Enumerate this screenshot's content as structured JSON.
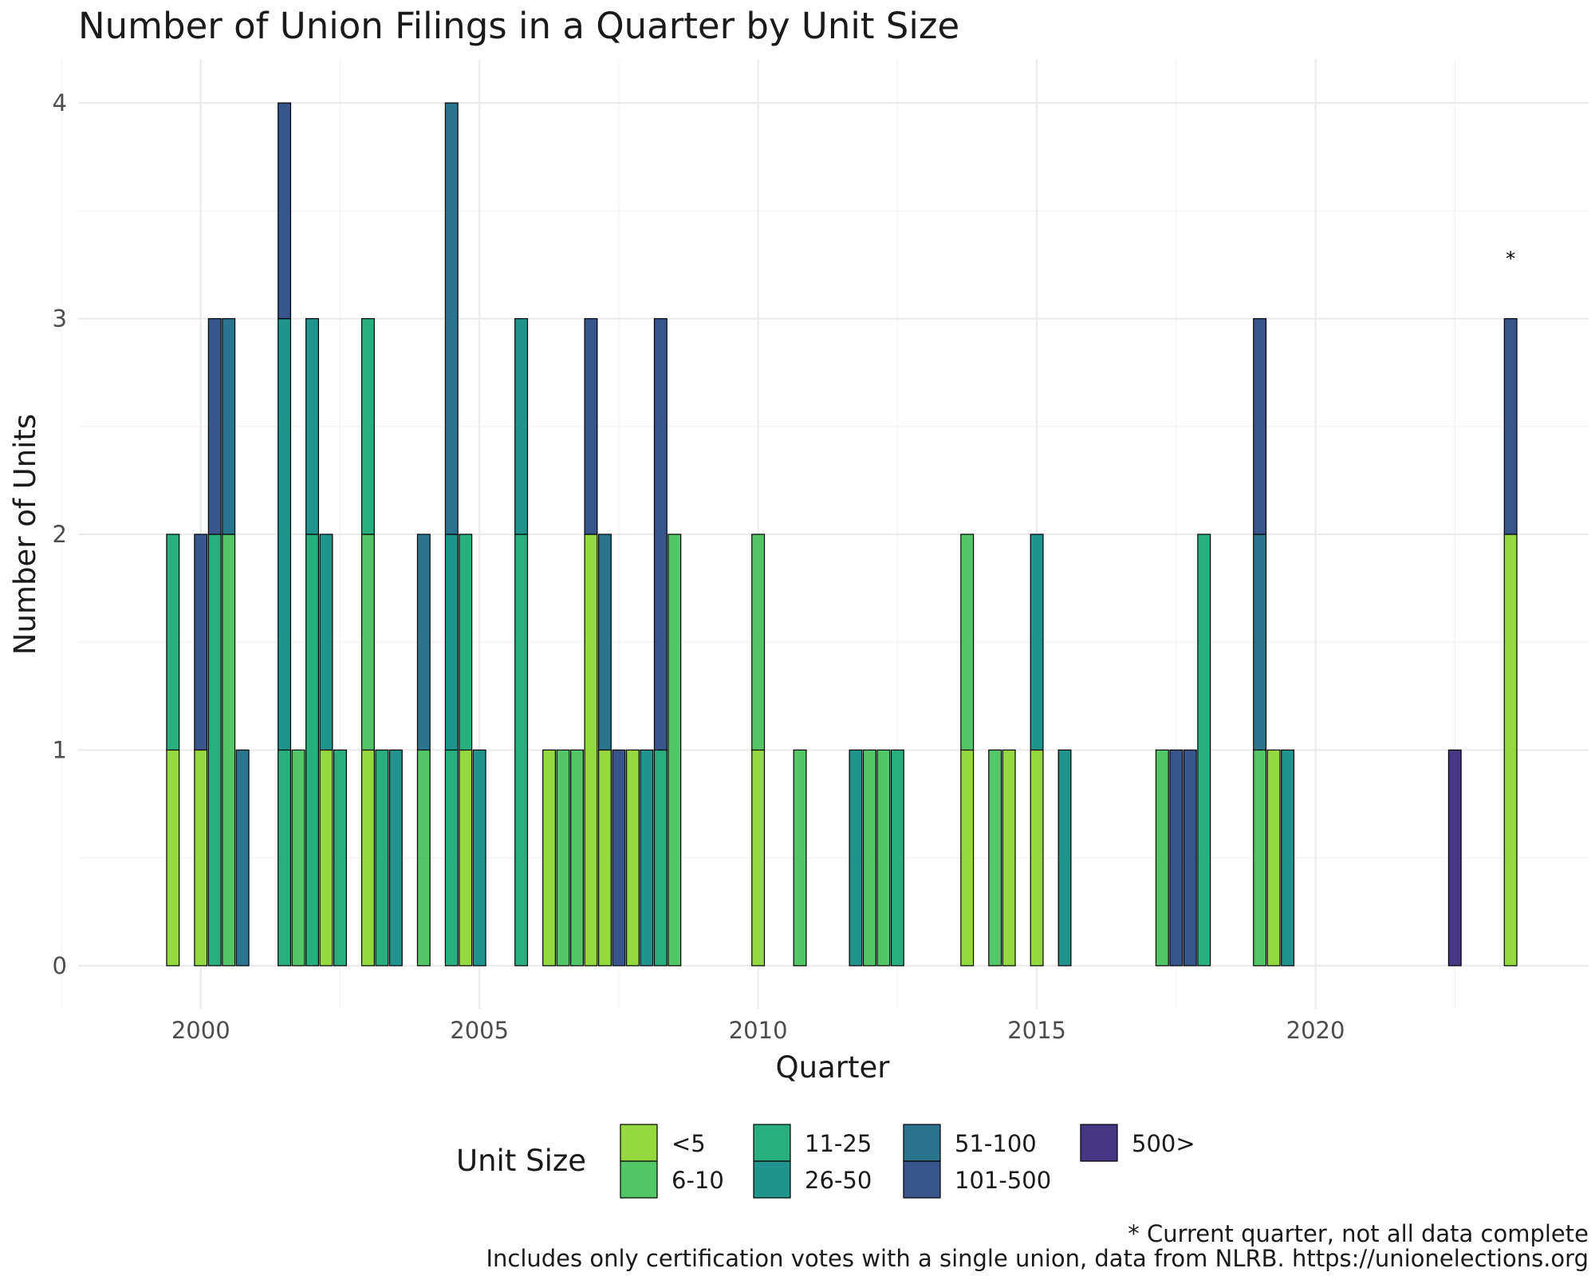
{
  "chart_data": {
    "type": "bar",
    "stacked": true,
    "title": "Number of Union Filings in a Quarter by Unit Size",
    "xlabel": "Quarter",
    "ylabel": "Number of Units",
    "xlim": [
      1997.8,
      2024.9
    ],
    "ylim": [
      -0.2,
      4.2
    ],
    "x_ticks": [
      2000,
      2005,
      2010,
      2015,
      2020
    ],
    "y_ticks": [
      0,
      1,
      2,
      3,
      4
    ],
    "grid": true,
    "legend": {
      "title": "Unit Size",
      "position": "bottom",
      "entries": [
        {
          "name": "<5",
          "color": "#95d840"
        },
        {
          "name": "6-10",
          "color": "#55c667"
        },
        {
          "name": "11-25",
          "color": "#29af7f"
        },
        {
          "name": "26-50",
          "color": "#20938c"
        },
        {
          "name": "51-100",
          "color": "#2b748e"
        },
        {
          "name": "101-500",
          "color": "#39568c"
        },
        {
          "name": "500>",
          "color": "#453781"
        }
      ]
    },
    "annotations": [
      {
        "text": "*",
        "x": 2023.5,
        "y": 3.3
      }
    ],
    "caption_lines": [
      "* Current quarter, not all data complete",
      "Includes only certification votes with a single union, data from NLRB. https://unionelections.org"
    ],
    "bars": [
      {
        "x": 1999.5,
        "stack": [
          {
            "size": "<5",
            "value": 1
          },
          {
            "size": "11-25",
            "value": 1
          }
        ]
      },
      {
        "x": 2000.0,
        "stack": [
          {
            "size": "<5",
            "value": 1
          },
          {
            "size": "101-500",
            "value": 1
          }
        ]
      },
      {
        "x": 2000.25,
        "stack": [
          {
            "size": "11-25",
            "value": 2
          },
          {
            "size": "101-500",
            "value": 1
          }
        ]
      },
      {
        "x": 2000.5,
        "stack": [
          {
            "size": "6-10",
            "value": 2
          },
          {
            "size": "51-100",
            "value": 1
          }
        ]
      },
      {
        "x": 2000.75,
        "stack": [
          {
            "size": "51-100",
            "value": 1
          }
        ]
      },
      {
        "x": 2001.5,
        "stack": [
          {
            "size": "11-25",
            "value": 1
          },
          {
            "size": "26-50",
            "value": 2
          },
          {
            "size": "101-500",
            "value": 1
          }
        ]
      },
      {
        "x": 2001.75,
        "stack": [
          {
            "size": "6-10",
            "value": 1
          }
        ]
      },
      {
        "x": 2002.0,
        "stack": [
          {
            "size": "11-25",
            "value": 2
          },
          {
            "size": "26-50",
            "value": 1
          }
        ]
      },
      {
        "x": 2002.25,
        "stack": [
          {
            "size": "<5",
            "value": 1
          },
          {
            "size": "26-50",
            "value": 1
          }
        ]
      },
      {
        "x": 2002.5,
        "stack": [
          {
            "size": "11-25",
            "value": 1
          }
        ]
      },
      {
        "x": 2003.0,
        "stack": [
          {
            "size": "<5",
            "value": 1
          },
          {
            "size": "6-10",
            "value": 1
          },
          {
            "size": "11-25",
            "value": 1
          }
        ]
      },
      {
        "x": 2003.25,
        "stack": [
          {
            "size": "11-25",
            "value": 1
          }
        ]
      },
      {
        "x": 2003.5,
        "stack": [
          {
            "size": "26-50",
            "value": 1
          }
        ]
      },
      {
        "x": 2004.0,
        "stack": [
          {
            "size": "6-10",
            "value": 1
          },
          {
            "size": "51-100",
            "value": 1
          }
        ]
      },
      {
        "x": 2004.5,
        "stack": [
          {
            "size": "11-25",
            "value": 1
          },
          {
            "size": "26-50",
            "value": 1
          },
          {
            "size": "51-100",
            "value": 2
          }
        ]
      },
      {
        "x": 2004.75,
        "stack": [
          {
            "size": "<5",
            "value": 1
          },
          {
            "size": "11-25",
            "value": 1
          }
        ]
      },
      {
        "x": 2005.0,
        "stack": [
          {
            "size": "26-50",
            "value": 1
          }
        ]
      },
      {
        "x": 2005.75,
        "stack": [
          {
            "size": "11-25",
            "value": 2
          },
          {
            "size": "26-50",
            "value": 1
          }
        ]
      },
      {
        "x": 2006.25,
        "stack": [
          {
            "size": "<5",
            "value": 1
          }
        ]
      },
      {
        "x": 2006.5,
        "stack": [
          {
            "size": "6-10",
            "value": 1
          }
        ]
      },
      {
        "x": 2006.75,
        "stack": [
          {
            "size": "6-10",
            "value": 1
          }
        ]
      },
      {
        "x": 2007.0,
        "stack": [
          {
            "size": "<5",
            "value": 2
          },
          {
            "size": "101-500",
            "value": 1
          }
        ]
      },
      {
        "x": 2007.25,
        "stack": [
          {
            "size": "<5",
            "value": 1
          },
          {
            "size": "51-100",
            "value": 1
          }
        ]
      },
      {
        "x": 2007.5,
        "stack": [
          {
            "size": "101-500",
            "value": 1
          }
        ]
      },
      {
        "x": 2007.75,
        "stack": [
          {
            "size": "<5",
            "value": 1
          }
        ]
      },
      {
        "x": 2008.0,
        "stack": [
          {
            "size": "26-50",
            "value": 1
          }
        ]
      },
      {
        "x": 2008.25,
        "stack": [
          {
            "size": "11-25",
            "value": 1
          },
          {
            "size": "101-500",
            "value": 2
          }
        ]
      },
      {
        "x": 2008.5,
        "stack": [
          {
            "size": "6-10",
            "value": 2
          }
        ]
      },
      {
        "x": 2010.0,
        "stack": [
          {
            "size": "<5",
            "value": 1
          },
          {
            "size": "6-10",
            "value": 1
          }
        ]
      },
      {
        "x": 2010.75,
        "stack": [
          {
            "size": "6-10",
            "value": 1
          }
        ]
      },
      {
        "x": 2011.75,
        "stack": [
          {
            "size": "26-50",
            "value": 1
          }
        ]
      },
      {
        "x": 2012.0,
        "stack": [
          {
            "size": "6-10",
            "value": 1
          }
        ]
      },
      {
        "x": 2012.25,
        "stack": [
          {
            "size": "6-10",
            "value": 1
          }
        ]
      },
      {
        "x": 2012.5,
        "stack": [
          {
            "size": "11-25",
            "value": 1
          }
        ]
      },
      {
        "x": 2013.75,
        "stack": [
          {
            "size": "<5",
            "value": 1
          },
          {
            "size": "6-10",
            "value": 1
          }
        ]
      },
      {
        "x": 2014.25,
        "stack": [
          {
            "size": "6-10",
            "value": 1
          }
        ]
      },
      {
        "x": 2014.5,
        "stack": [
          {
            "size": "<5",
            "value": 1
          }
        ]
      },
      {
        "x": 2015.0,
        "stack": [
          {
            "size": "<5",
            "value": 1
          },
          {
            "size": "26-50",
            "value": 1
          }
        ]
      },
      {
        "x": 2015.5,
        "stack": [
          {
            "size": "26-50",
            "value": 1
          }
        ]
      },
      {
        "x": 2017.25,
        "stack": [
          {
            "size": "6-10",
            "value": 1
          }
        ]
      },
      {
        "x": 2017.5,
        "stack": [
          {
            "size": "101-500",
            "value": 1
          }
        ]
      },
      {
        "x": 2017.75,
        "stack": [
          {
            "size": "101-500",
            "value": 1
          }
        ]
      },
      {
        "x": 2018.0,
        "stack": [
          {
            "size": "11-25",
            "value": 2
          }
        ]
      },
      {
        "x": 2019.0,
        "stack": [
          {
            "size": "6-10",
            "value": 1
          },
          {
            "size": "51-100",
            "value": 1
          },
          {
            "size": "101-500",
            "value": 1
          }
        ]
      },
      {
        "x": 2019.25,
        "stack": [
          {
            "size": "<5",
            "value": 1
          }
        ]
      },
      {
        "x": 2019.5,
        "stack": [
          {
            "size": "26-50",
            "value": 1
          }
        ]
      },
      {
        "x": 2022.5,
        "stack": [
          {
            "size": "500>",
            "value": 1
          }
        ]
      },
      {
        "x": 2023.5,
        "stack": [
          {
            "size": "<5",
            "value": 2
          },
          {
            "size": "101-500",
            "value": 1
          }
        ]
      }
    ]
  }
}
